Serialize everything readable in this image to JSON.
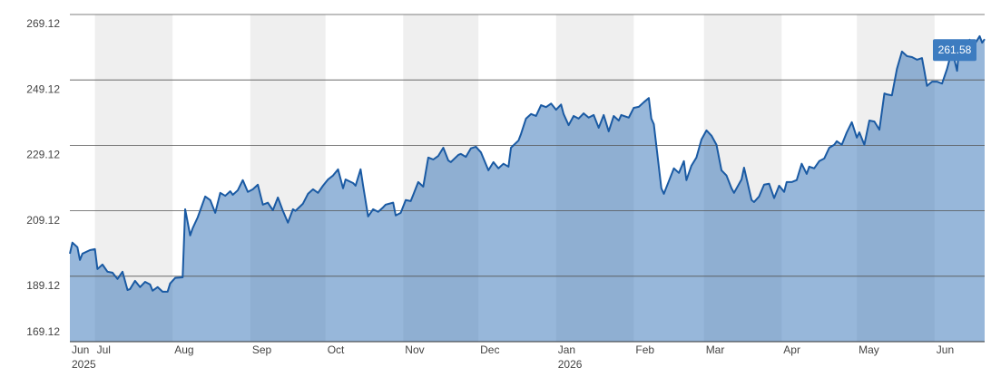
{
  "chart_data": {
    "type": "line",
    "color": "#1a5aa3",
    "fill_color": "#2f6fb5",
    "band_color": "#efefef",
    "grid": true,
    "xlim": [
      0,
      365
    ],
    "ylim": [
      169.12,
      269.12
    ],
    "yticks": [
      169.12,
      189.12,
      209.12,
      229.12,
      249.12,
      269.12
    ],
    "xticks": [
      {
        "value": 0,
        "label": "Jun"
      },
      {
        "value": 10,
        "label": "Jul"
      },
      {
        "value": 41,
        "label": "Aug"
      },
      {
        "value": 72,
        "label": "Sep"
      },
      {
        "value": 102,
        "label": "Oct"
      },
      {
        "value": 133,
        "label": "Nov"
      },
      {
        "value": 163,
        "label": "Dec"
      },
      {
        "value": 194,
        "label": "Jan"
      },
      {
        "value": 225,
        "label": "Feb"
      },
      {
        "value": 253,
        "label": "Mar"
      },
      {
        "value": 284,
        "label": "Apr"
      },
      {
        "value": 314,
        "label": "May"
      },
      {
        "value": 345,
        "label": "Jun"
      }
    ],
    "x_sublabels": [
      {
        "value": 0,
        "label": "2025"
      },
      {
        "value": 194,
        "label": "2026"
      }
    ],
    "x": [
      0,
      1,
      3,
      4,
      5,
      8,
      10,
      11,
      13,
      15,
      17,
      19,
      21,
      23,
      24,
      26,
      28,
      30,
      32,
      33,
      35,
      37,
      39,
      40,
      42,
      45,
      46,
      48,
      49,
      51,
      54,
      56,
      58,
      60,
      62,
      64,
      65,
      67,
      69,
      71,
      73,
      75,
      77,
      79,
      81,
      83,
      85,
      87,
      89,
      90,
      93,
      95,
      97,
      99,
      101,
      103,
      105,
      107,
      109,
      110,
      113,
      114,
      116,
      117,
      119,
      121,
      123,
      125,
      126,
      129,
      130,
      132,
      134,
      136,
      137,
      139,
      141,
      143,
      145,
      147,
      149,
      151,
      152,
      155,
      156,
      158,
      160,
      162,
      164,
      167,
      169,
      171,
      173,
      175,
      176,
      179,
      180,
      182,
      184,
      186,
      188,
      190,
      192,
      194,
      196,
      197,
      199,
      201,
      203,
      205,
      207,
      209,
      211,
      213,
      215,
      217,
      219,
      220,
      223,
      225,
      227,
      229,
      231,
      232,
      233,
      236,
      237,
      239,
      241,
      243,
      245,
      246,
      248,
      250,
      252,
      254,
      256,
      258,
      260,
      262,
      264,
      265,
      268,
      269,
      272,
      273,
      275,
      277,
      279,
      281,
      283,
      285,
      286,
      288,
      290,
      292,
      294,
      295,
      297,
      299,
      301,
      303,
      305,
      306,
      308,
      310,
      312,
      314,
      315,
      317,
      319,
      321,
      323,
      325,
      326,
      328,
      330,
      332,
      334,
      336,
      338,
      340,
      341,
      342,
      344,
      346,
      348,
      350,
      352,
      354,
      355,
      357,
      359,
      361,
      363,
      364,
      365
    ],
    "values": [
      196.0,
      199.4,
      198.0,
      194.1,
      196.0,
      197.1,
      197.4,
      191.3,
      192.7,
      190.5,
      190.2,
      188.3,
      190.5,
      184.9,
      185.2,
      187.7,
      185.8,
      187.4,
      186.6,
      184.7,
      185.8,
      184.4,
      184.4,
      186.9,
      188.6,
      188.8,
      209.6,
      201.6,
      203.8,
      207.1,
      213.5,
      212.4,
      208.5,
      214.6,
      213.7,
      215.1,
      214.0,
      215.4,
      218.5,
      214.9,
      215.7,
      217.1,
      211.0,
      211.6,
      209.3,
      213.2,
      209.1,
      205.5,
      209.6,
      209.1,
      211.3,
      214.3,
      215.7,
      214.6,
      216.8,
      218.7,
      219.9,
      221.8,
      216.0,
      218.7,
      217.6,
      216.8,
      221.8,
      216.8,
      207.4,
      209.6,
      208.8,
      210.2,
      211.0,
      211.6,
      207.7,
      208.5,
      212.4,
      212.1,
      214.0,
      217.9,
      216.5,
      225.4,
      224.8,
      225.9,
      228.4,
      224.5,
      224.0,
      226.2,
      226.5,
      225.6,
      228.2,
      228.7,
      227.0,
      221.5,
      224.0,
      222.1,
      223.5,
      222.6,
      228.4,
      230.6,
      232.6,
      237.3,
      238.7,
      238.1,
      241.4,
      240.8,
      241.9,
      240.0,
      241.6,
      238.7,
      235.3,
      238.1,
      237.3,
      238.9,
      237.6,
      238.4,
      234.5,
      238.4,
      233.4,
      238.1,
      236.7,
      238.4,
      237.6,
      240.6,
      240.9,
      242.3,
      243.6,
      237.3,
      235.6,
      216.0,
      214.3,
      218.2,
      222.1,
      220.7,
      224.3,
      218.5,
      222.9,
      225.4,
      230.9,
      233.7,
      232.1,
      229.3,
      221.5,
      219.9,
      216.0,
      214.6,
      218.7,
      222.3,
      212.4,
      211.8,
      213.5,
      217.1,
      217.4,
      213.0,
      216.8,
      214.9,
      217.9,
      217.9,
      218.5,
      223.5,
      220.4,
      222.6,
      222.1,
      224.3,
      225.1,
      228.4,
      229.3,
      230.4,
      229.3,
      233.1,
      236.2,
      231.5,
      233.1,
      229.3,
      236.7,
      236.4,
      233.9,
      245.0,
      244.7,
      244.4,
      252.5,
      257.8,
      256.4,
      256.1,
      255.3,
      255.8,
      251.7,
      247.3,
      248.6,
      248.6,
      248.0,
      252.5,
      258.3,
      251.9,
      260.5,
      259.6,
      261.4,
      260.0,
      262.5,
      260.5,
      261.58
    ]
  }
}
